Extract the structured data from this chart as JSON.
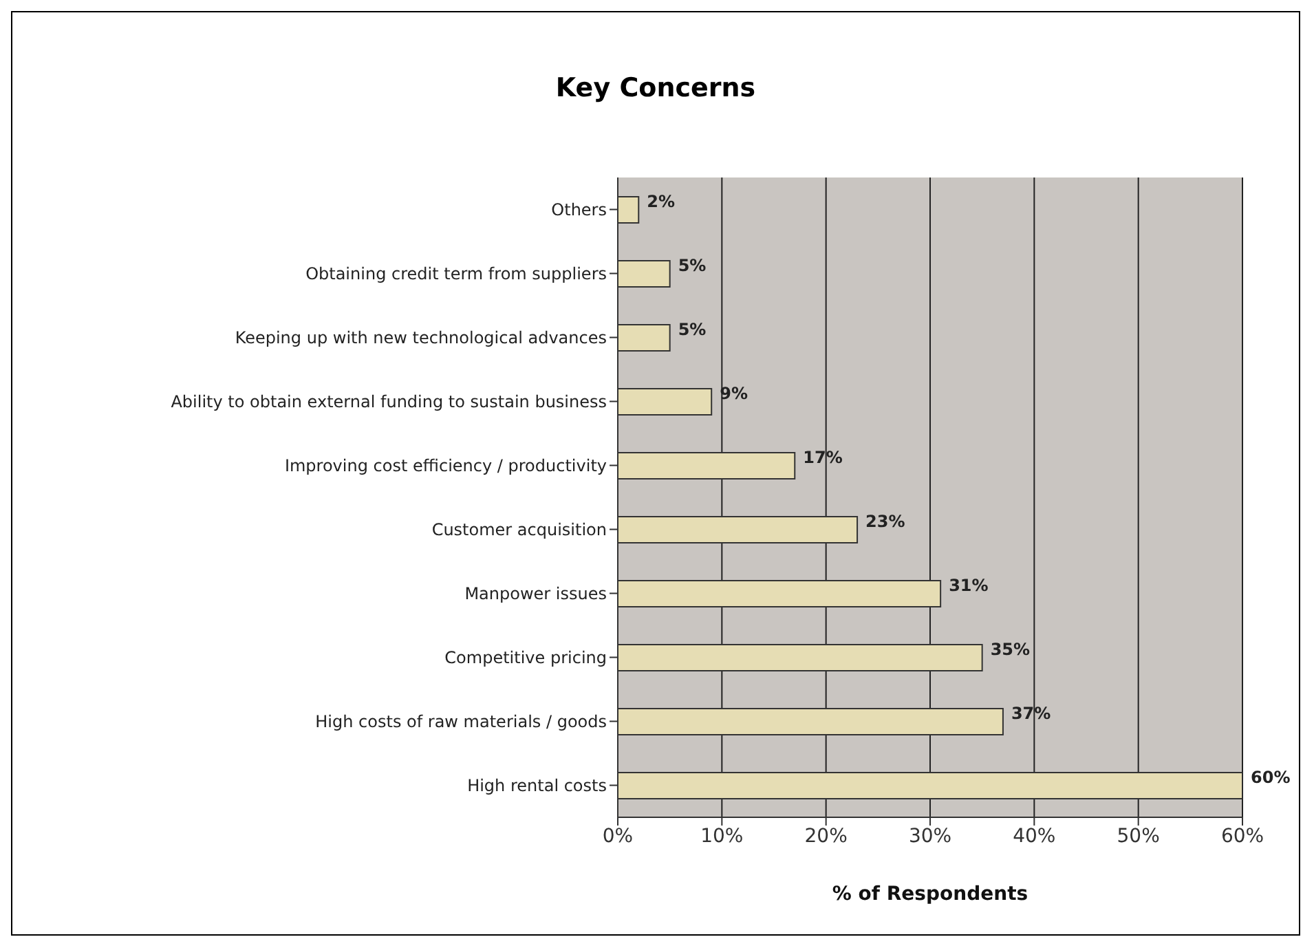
{
  "chart_data": {
    "type": "bar",
    "orientation": "horizontal",
    "title": "Key Concerns",
    "xlabel": "% of Respondents",
    "categories": [
      "Others",
      "Obtaining credit term from suppliers",
      "Keeping up with new technological advances",
      "Ability to obtain external funding to sustain business",
      "Improving cost efficiency / productivity",
      "Customer acquisition",
      "Manpower issues",
      "Competitive pricing",
      "High costs of raw materials / goods",
      "High rental costs"
    ],
    "values": [
      2,
      5,
      5,
      9,
      17,
      23,
      31,
      35,
      37,
      60
    ],
    "value_labels": [
      "2%",
      "5%",
      "5%",
      "9%",
      "17%",
      "23%",
      "31%",
      "35%",
      "37%",
      "60%"
    ],
    "color": "#e6ddb4",
    "xlim": [
      0,
      60
    ],
    "xticks": [
      {
        "value": 0,
        "label": "0%"
      },
      {
        "value": 10,
        "label": "10%"
      },
      {
        "value": 20,
        "label": "20%"
      },
      {
        "value": 30,
        "label": "30%"
      },
      {
        "value": 40,
        "label": "40%"
      },
      {
        "value": 50,
        "label": "50%"
      },
      {
        "value": 60,
        "label": "60%"
      }
    ],
    "grid": "x"
  }
}
